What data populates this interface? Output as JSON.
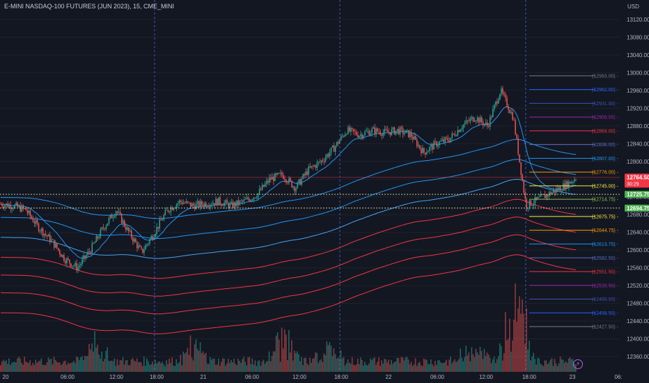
{
  "header": {
    "title": "E-MINI NASDAQ-100 FUTURES (JUN 2023), 15, CME_MINI",
    "currency": "USD"
  },
  "chart_data": {
    "type": "candlestick",
    "y_ticks": [
      "13120.00",
      "13080.00",
      "13040.00",
      "13000.00",
      "12960.00",
      "12920.00",
      "12880.00",
      "12840.00",
      "12800.00",
      "12760.00",
      "12720.00",
      "12680.00",
      "12640.00",
      "12600.00",
      "12560.00",
      "12520.00",
      "12480.00",
      "12440.00",
      "12400.00",
      "12360.00"
    ],
    "ylim": [
      12340,
      13150
    ],
    "x_ticks": [
      "20",
      "06:00",
      "12:00",
      "18:00",
      "21",
      "06:00",
      "12:00",
      "18:00",
      "22",
      "06:00",
      "12:00",
      "18:00",
      "23",
      "06:"
    ],
    "session_lines_at": [
      "18:00",
      "18:00",
      "18:00"
    ],
    "price_badges": [
      {
        "value": "12764.50",
        "sub": "30:29",
        "color": "#f23645"
      },
      {
        "value": "12725.75",
        "color": "#4caf50"
      },
      {
        "value": "12694.75",
        "color": "#4caf50"
      }
    ],
    "levels": [
      {
        "label": "(12993.00)",
        "price": 12993,
        "color": "#787b86"
      },
      {
        "label": "(12962.00)",
        "price": 12962,
        "color": "#2962ff"
      },
      {
        "label": "(12931.00)",
        "price": 12931,
        "color": "#3f51b5"
      },
      {
        "label": "(12900.00)",
        "price": 12900,
        "color": "#9c27b0"
      },
      {
        "label": "(12869.00)",
        "price": 12869,
        "color": "#f23645"
      },
      {
        "label": "(12838.00)",
        "price": 12838,
        "color": "#5c6bc0"
      },
      {
        "label": "(12807.00)",
        "price": 12807,
        "color": "#2196f3"
      },
      {
        "label": "(12776.00)",
        "price": 12776,
        "color": "#ff9800"
      },
      {
        "label": "(12745.00)",
        "price": 12745,
        "color": "#ffeb3b"
      },
      {
        "label": "(12714.75)",
        "price": 12714.75,
        "color": "#8bc34a"
      },
      {
        "label": "(12675.75)",
        "price": 12675.75,
        "color": "#ffeb3b"
      },
      {
        "label": "(12644.75)",
        "price": 12644.75,
        "color": "#ff9800"
      },
      {
        "label": "(12613.75)",
        "price": 12613.75,
        "color": "#2196f3"
      },
      {
        "label": "(12582.50)",
        "price": 12582.5,
        "color": "#5c6bc0"
      },
      {
        "label": "(12551.50)",
        "price": 12551.5,
        "color": "#f23645"
      },
      {
        "label": "(12520.50)",
        "price": 12520.5,
        "color": "#9c27b0"
      },
      {
        "label": "(12489.50)",
        "price": 12489.5,
        "color": "#3f51b5"
      },
      {
        "label": "(12458.50)",
        "price": 12458.5,
        "color": "#2962ff"
      },
      {
        "label": "(12427.50)",
        "price": 12427.5,
        "color": "#787b86"
      }
    ],
    "dotted_levels": [
      12725.75,
      12694.75
    ],
    "price_path": [
      [
        12704,
        12700
      ],
      [
        12700,
        12690
      ],
      [
        12688,
        12650
      ],
      [
        12650,
        12620
      ],
      [
        12620,
        12580
      ],
      [
        12580,
        12560
      ],
      [
        12560,
        12600
      ],
      [
        12600,
        12650
      ],
      [
        12650,
        12690
      ],
      [
        12690,
        12640
      ],
      [
        12640,
        12595
      ],
      [
        12595,
        12640
      ],
      [
        12640,
        12690
      ],
      [
        12690,
        12710
      ],
      [
        12710,
        12700
      ],
      [
        12700,
        12705
      ],
      [
        12705,
        12710
      ],
      [
        12710,
        12700
      ],
      [
        12700,
        12710
      ],
      [
        12710,
        12725
      ],
      [
        12725,
        12760
      ],
      [
        12760,
        12770
      ],
      [
        12770,
        12740
      ],
      [
        12740,
        12780
      ],
      [
        12780,
        12800
      ],
      [
        12800,
        12830
      ],
      [
        12830,
        12870
      ],
      [
        12870,
        12860
      ],
      [
        12860,
        12870
      ],
      [
        12870,
        12865
      ],
      [
        12865,
        12870
      ],
      [
        12870,
        12860
      ],
      [
        12860,
        12820
      ],
      [
        12820,
        12840
      ],
      [
        12840,
        12850
      ],
      [
        12850,
        12880
      ],
      [
        12880,
        12900
      ],
      [
        12900,
        12880
      ],
      [
        12880,
        12960
      ],
      [
        12960,
        12900
      ],
      [
        12900,
        12700
      ],
      [
        12700,
        12715
      ],
      [
        12715,
        12730
      ],
      [
        12730,
        12745
      ],
      [
        12745,
        12764.5
      ]
    ],
    "colors": {
      "up": "#26a69a",
      "down": "#ef5350",
      "background": "#131722",
      "grid": "#1e222d"
    }
  }
}
